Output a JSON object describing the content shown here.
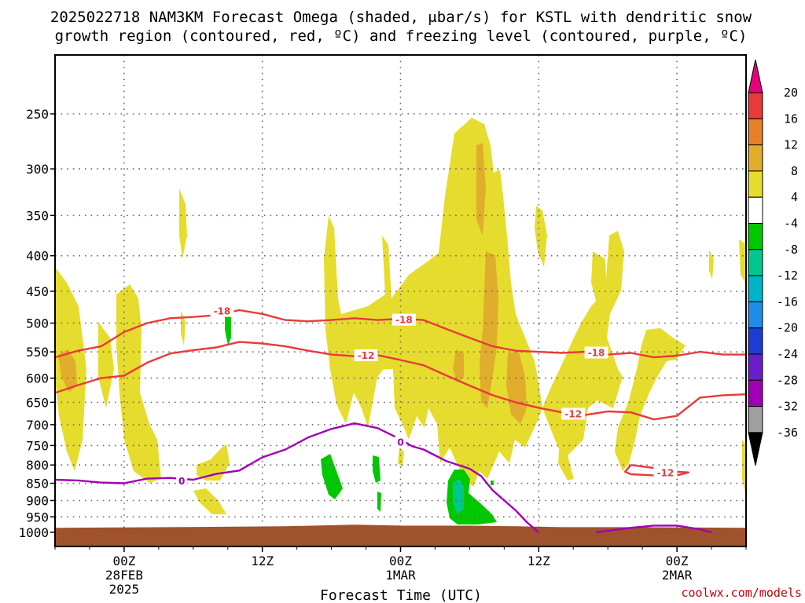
{
  "title_line1": "2025022718 NAM3KM Forecast Omega (shaded, μbar/s) for KSTL with dendritic snow",
  "title_line2": "growth region (contoured, red, ºC) and freezing level (contoured, purple, ºC)",
  "credit": "coolwx.com/models",
  "chart_data": {
    "type": "heatmap",
    "xlabel": "Forecast Time (UTC)",
    "x_unit": "hours from 2025-02-27 18Z",
    "x_range": [
      0,
      60
    ],
    "y_unit": "hPa",
    "y_scale": "log",
    "y_range": [
      1000,
      200
    ],
    "y_ticks": [
      250,
      300,
      350,
      400,
      450,
      500,
      550,
      600,
      650,
      700,
      750,
      800,
      850,
      900,
      950,
      1000
    ],
    "x_ticks": [
      {
        "hour": 6,
        "lines": [
          "00Z",
          "28FEB",
          "2025"
        ]
      },
      {
        "hour": 18,
        "lines": [
          "12Z"
        ]
      },
      {
        "hour": 30,
        "lines": [
          "00Z",
          "1MAR"
        ]
      },
      {
        "hour": 42,
        "lines": [
          "12Z"
        ]
      },
      {
        "hour": 54,
        "lines": [
          "00Z",
          "2MAR"
        ]
      }
    ],
    "colorbar": {
      "labels": [
        "20",
        "16",
        "12",
        "8",
        "4",
        "-4",
        "-8",
        "-12",
        "-16",
        "-20",
        "-24",
        "-28",
        "-32",
        "-36"
      ],
      "colors": [
        "#e8007a",
        "#e83a3a",
        "#e8802a",
        "#e0ad2c",
        "#e6dc2e",
        "#ffffff",
        "#00c800",
        "#00c88c",
        "#00b4c8",
        "#1e8ce8",
        "#1e3cd2",
        "#6a1ec8",
        "#a000b4",
        "#a0a0a0",
        "#000000"
      ]
    },
    "dendritic_minus18": [
      [
        0,
        560
      ],
      [
        2,
        548
      ],
      [
        4,
        540
      ],
      [
        6,
        515
      ],
      [
        8,
        500
      ],
      [
        10,
        492
      ],
      [
        12,
        490
      ],
      [
        14,
        487
      ],
      [
        16,
        479
      ],
      [
        18,
        485
      ],
      [
        20,
        495
      ],
      [
        22,
        497
      ],
      [
        24,
        495
      ],
      [
        26,
        492
      ],
      [
        28,
        495
      ],
      [
        30,
        493
      ],
      [
        32,
        495
      ],
      [
        34,
        510
      ],
      [
        36,
        525
      ],
      [
        38,
        540
      ],
      [
        40,
        548
      ],
      [
        42,
        550
      ],
      [
        44,
        552
      ],
      [
        46,
        550
      ],
      [
        48,
        555
      ],
      [
        50,
        552
      ],
      [
        52,
        560
      ],
      [
        54,
        557
      ],
      [
        56,
        550
      ],
      [
        58,
        555
      ],
      [
        60,
        555
      ]
    ],
    "dendritic_minus12": [
      [
        0,
        630
      ],
      [
        2,
        614
      ],
      [
        4,
        600
      ],
      [
        6,
        595
      ],
      [
        8,
        570
      ],
      [
        10,
        553
      ],
      [
        12,
        547
      ],
      [
        14,
        542
      ],
      [
        16,
        532
      ],
      [
        18,
        535
      ],
      [
        20,
        540
      ],
      [
        22,
        548
      ],
      [
        24,
        555
      ],
      [
        26,
        558
      ],
      [
        28,
        556
      ],
      [
        30,
        565
      ],
      [
        32,
        575
      ],
      [
        34,
        595
      ],
      [
        36,
        615
      ],
      [
        38,
        635
      ],
      [
        40,
        650
      ],
      [
        42,
        662
      ],
      [
        44,
        672
      ],
      [
        46,
        678
      ],
      [
        48,
        670
      ],
      [
        50,
        672
      ],
      [
        52,
        688
      ],
      [
        54,
        680
      ],
      [
        56,
        640
      ],
      [
        58,
        635
      ],
      [
        60,
        633
      ]
    ],
    "dendritic_minus12_closed": [
      [
        50,
        800
      ],
      [
        52,
        808
      ],
      [
        54,
        818
      ],
      [
        55,
        820
      ],
      [
        54,
        828
      ],
      [
        52,
        828
      ],
      [
        50,
        825
      ],
      [
        49.5,
        818
      ],
      [
        50,
        800
      ]
    ],
    "freezing_0": [
      [
        0,
        840
      ],
      [
        2,
        842
      ],
      [
        4,
        848
      ],
      [
        6,
        850
      ],
      [
        8,
        837
      ],
      [
        10,
        835
      ],
      [
        12,
        840
      ],
      [
        14,
        824
      ],
      [
        16,
        815
      ],
      [
        18,
        780
      ],
      [
        20,
        760
      ],
      [
        22,
        730
      ],
      [
        24,
        710
      ],
      [
        26,
        697
      ],
      [
        28,
        708
      ],
      [
        30,
        735
      ],
      [
        31,
        752
      ],
      [
        32,
        760
      ],
      [
        33,
        775
      ],
      [
        34,
        790
      ],
      [
        36,
        810
      ],
      [
        37,
        830
      ],
      [
        38,
        870
      ],
      [
        40,
        930
      ],
      [
        41,
        968
      ],
      [
        42,
        1000
      ]
    ],
    "freezing_0_lower": [
      [
        47,
        1000
      ],
      [
        50,
        985
      ],
      [
        52,
        978
      ],
      [
        54,
        978
      ],
      [
        56,
        990
      ],
      [
        57,
        1000
      ]
    ],
    "contour_labels": [
      {
        "text": "-18",
        "x": 14.5,
        "p": 481,
        "color": "#e83a3a"
      },
      {
        "text": "-18",
        "x": 30.3,
        "p": 495,
        "color": "#e83a3a"
      },
      {
        "text": "-18",
        "x": 47.0,
        "p": 552,
        "color": "#e83a3a"
      },
      {
        "text": "-12",
        "x": 27.0,
        "p": 557,
        "color": "#e83a3a"
      },
      {
        "text": "-12",
        "x": 45.0,
        "p": 676,
        "color": "#e83a3a"
      },
      {
        "text": "-12",
        "x": 53.0,
        "p": 822,
        "color": "#e83a3a"
      },
      {
        "text": "0",
        "x": 11.0,
        "p": 845,
        "color": "#a000b4"
      },
      {
        "text": "0",
        "x": 30.0,
        "p": 742,
        "color": "#a000b4"
      }
    ],
    "terrain": {
      "color": "#a0522d",
      "surface_p": [
        [
          0,
          985
        ],
        [
          10,
          983
        ],
        [
          20,
          980
        ],
        [
          26,
          975
        ],
        [
          30,
          978
        ],
        [
          36,
          978
        ],
        [
          40,
          980
        ],
        [
          44,
          983
        ],
        [
          50,
          983
        ],
        [
          60,
          985
        ]
      ]
    }
  }
}
